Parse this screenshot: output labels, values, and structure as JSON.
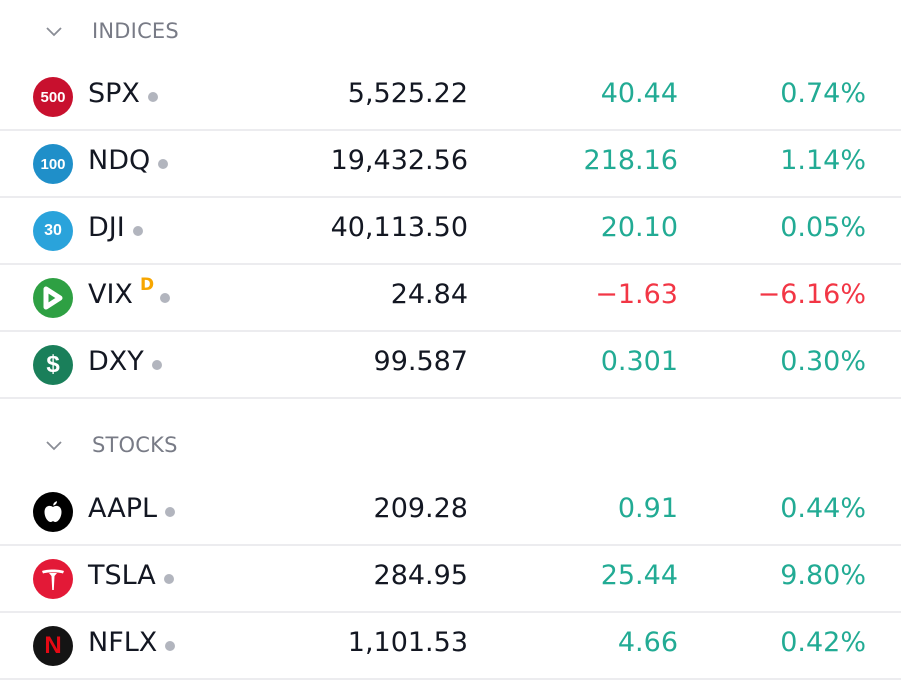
{
  "sections": [
    {
      "title": "INDICES",
      "rows": [
        {
          "logo": "500",
          "logo_color": "#c8102e",
          "symbol": "SPX",
          "delayed": "",
          "last": "5,525.22",
          "change": "40.44",
          "change_pct": "0.74%",
          "direction": "up"
        },
        {
          "logo": "100",
          "logo_color": "#1f8fc9",
          "symbol": "NDQ",
          "delayed": "",
          "last": "19,432.56",
          "change": "218.16",
          "change_pct": "1.14%",
          "direction": "up"
        },
        {
          "logo": "30",
          "logo_color": "#2aa3db",
          "symbol": "DJI",
          "delayed": "",
          "last": "40,113.50",
          "change": "20.10",
          "change_pct": "0.05%",
          "direction": "up"
        },
        {
          "logo": "play-arrow-icon",
          "logo_color": "#2ea043",
          "symbol": "VIX",
          "delayed": "D",
          "last": "24.84",
          "change": "−1.63",
          "change_pct": "−6.16%",
          "direction": "down"
        },
        {
          "logo": "$",
          "logo_color": "#1a7f5a",
          "symbol": "DXY",
          "delayed": "",
          "last": "99.587",
          "change": "0.301",
          "change_pct": "0.30%",
          "direction": "up"
        }
      ]
    },
    {
      "title": "STOCKS",
      "rows": [
        {
          "logo": "apple-icon",
          "logo_color": "#000000",
          "symbol": "AAPL",
          "delayed": "",
          "last": "209.28",
          "change": "0.91",
          "change_pct": "0.44%",
          "direction": "up"
        },
        {
          "logo": "tesla-icon",
          "logo_color": "#e31937",
          "symbol": "TSLA",
          "delayed": "",
          "last": "284.95",
          "change": "25.44",
          "change_pct": "9.80%",
          "direction": "up"
        },
        {
          "logo": "N",
          "logo_color": "#141414",
          "symbol": "NFLX",
          "delayed": "",
          "last": "1,101.53",
          "change": "4.66",
          "change_pct": "0.42%",
          "direction": "up"
        }
      ]
    }
  ],
  "colors": {
    "positive": "#22ab94",
    "negative": "#f23645",
    "muted": "#787b86",
    "text": "#131722"
  }
}
